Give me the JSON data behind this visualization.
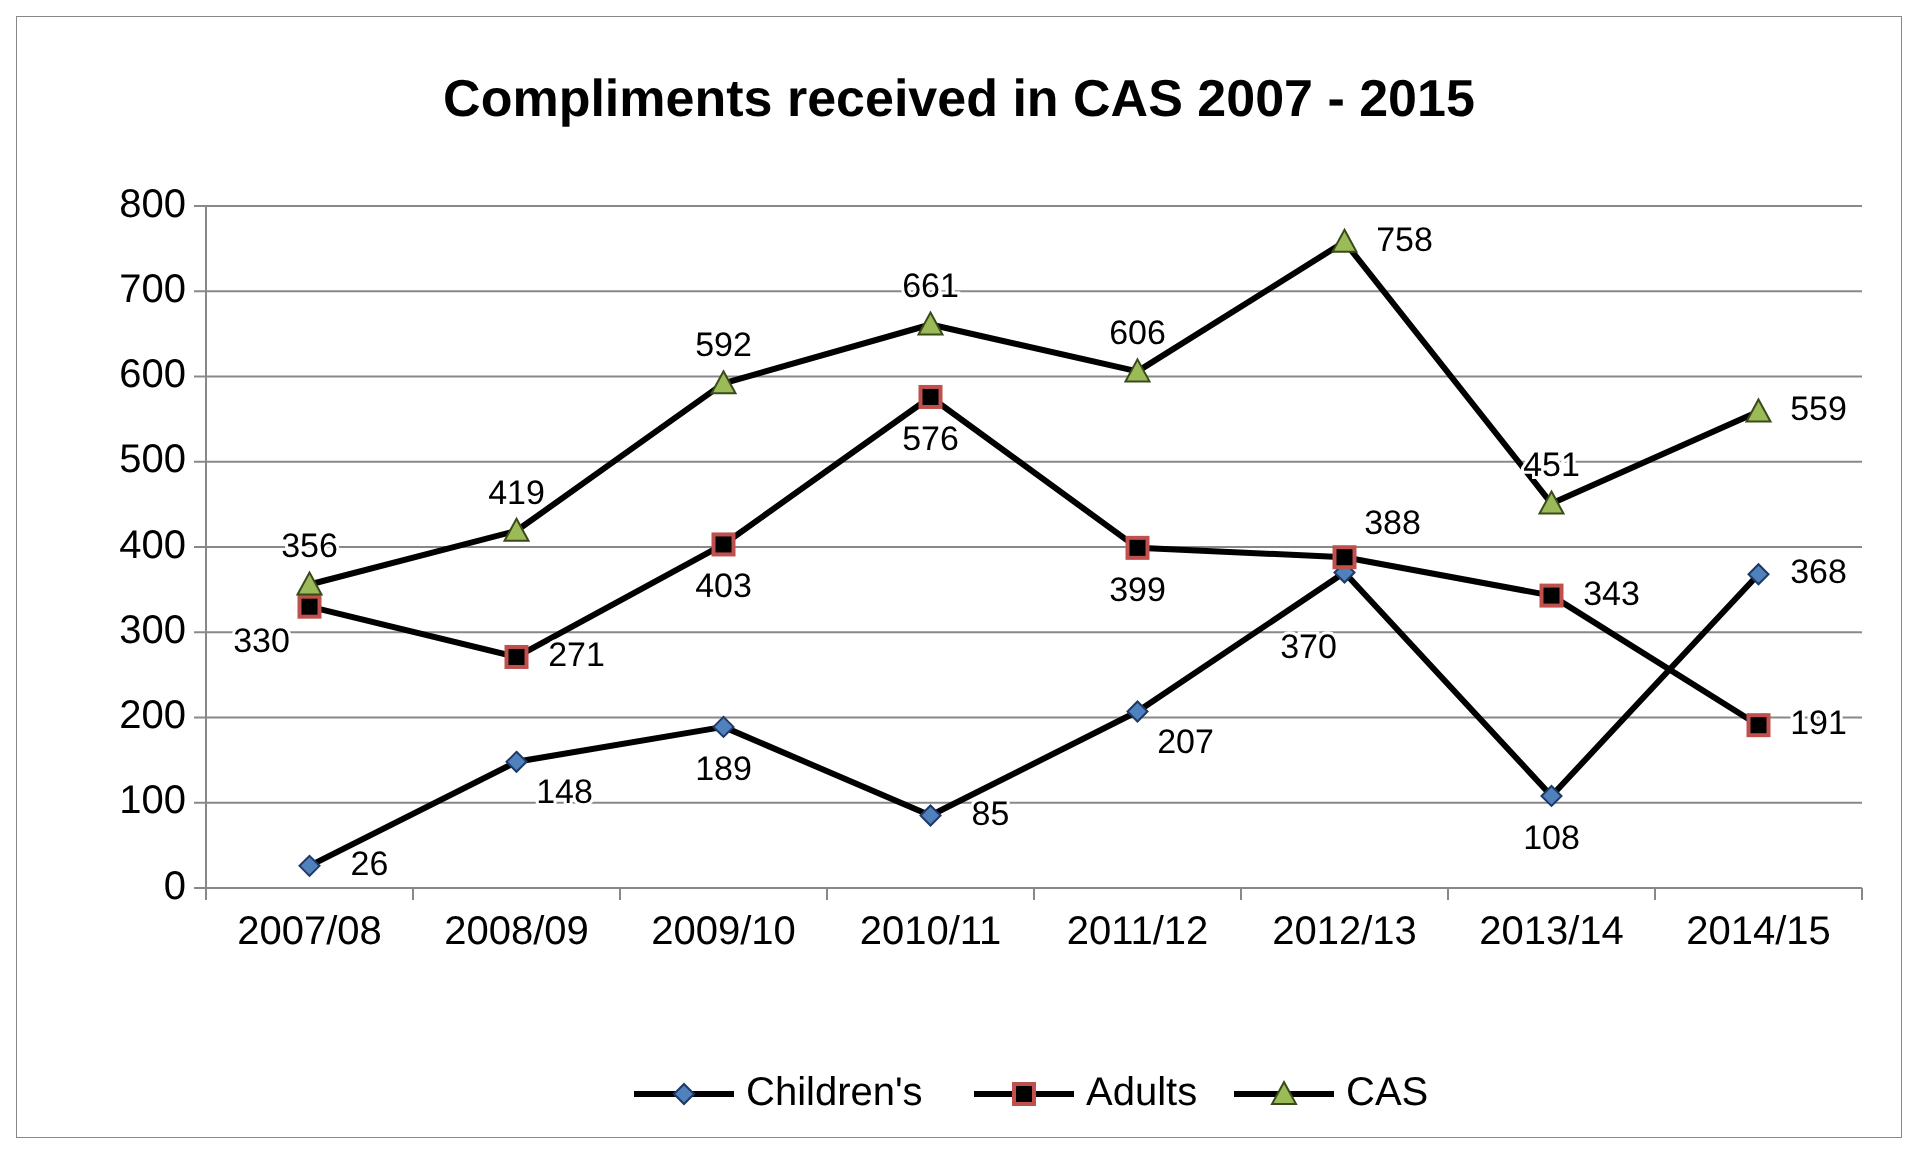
{
  "chart_data": {
    "type": "line",
    "title": "Compliments received in CAS 2007 - 2015",
    "categories": [
      "2007/08",
      "2008/09",
      "2009/10",
      "2010/11",
      "2011/12",
      "2012/13",
      "2013/14",
      "2014/15"
    ],
    "series": [
      {
        "name": "Children's",
        "color": "#4f81bd",
        "marker": "diamond",
        "values": [
          26,
          148,
          189,
          85,
          207,
          370,
          108,
          368
        ]
      },
      {
        "name": "Adults",
        "color": "#c0504d",
        "marker": "square",
        "values": [
          330,
          271,
          403,
          576,
          399,
          388,
          343,
          191
        ]
      },
      {
        "name": "CAS",
        "color": "#9bbb59",
        "marker": "triangle",
        "values": [
          356,
          419,
          592,
          661,
          606,
          758,
          451,
          559
        ]
      }
    ],
    "ylim": [
      0,
      800
    ],
    "yticks": [
      0,
      100,
      200,
      300,
      400,
      500,
      600,
      700,
      800
    ],
    "grid": "y",
    "legend": "bottom",
    "data_labels": true,
    "line_style": "solid"
  }
}
